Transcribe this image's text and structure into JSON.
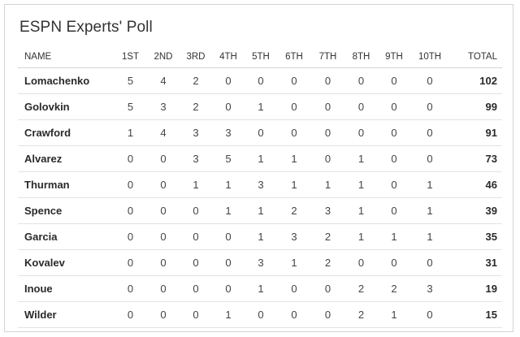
{
  "title": "ESPN Experts' Poll",
  "columns": [
    "NAME",
    "1ST",
    "2ND",
    "3RD",
    "4TH",
    "5TH",
    "6TH",
    "7TH",
    "8TH",
    "9TH",
    "10TH",
    "TOTAL"
  ],
  "rows": [
    {
      "name": "Lomachenko",
      "ranks": [
        "5",
        "4",
        "2",
        "0",
        "0",
        "0",
        "0",
        "0",
        "0",
        "0"
      ],
      "total": "102"
    },
    {
      "name": "Golovkin",
      "ranks": [
        "5",
        "3",
        "2",
        "0",
        "1",
        "0",
        "0",
        "0",
        "0",
        "0"
      ],
      "total": "99"
    },
    {
      "name": "Crawford",
      "ranks": [
        "1",
        "4",
        "3",
        "3",
        "0",
        "0",
        "0",
        "0",
        "0",
        "0"
      ],
      "total": "91"
    },
    {
      "name": "Alvarez",
      "ranks": [
        "0",
        "0",
        "3",
        "5",
        "1",
        "1",
        "0",
        "1",
        "0",
        "0"
      ],
      "total": "73"
    },
    {
      "name": "Thurman",
      "ranks": [
        "0",
        "0",
        "1",
        "1",
        "3",
        "1",
        "1",
        "1",
        "0",
        "1"
      ],
      "total": "46"
    },
    {
      "name": "Spence",
      "ranks": [
        "0",
        "0",
        "0",
        "1",
        "1",
        "2",
        "3",
        "1",
        "0",
        "1"
      ],
      "total": "39"
    },
    {
      "name": "Garcia",
      "ranks": [
        "0",
        "0",
        "0",
        "0",
        "1",
        "3",
        "2",
        "1",
        "1",
        "1"
      ],
      "total": "35"
    },
    {
      "name": "Kovalev",
      "ranks": [
        "0",
        "0",
        "0",
        "0",
        "3",
        "1",
        "2",
        "0",
        "0",
        "0"
      ],
      "total": "31"
    },
    {
      "name": "Inoue",
      "ranks": [
        "0",
        "0",
        "0",
        "0",
        "1",
        "0",
        "0",
        "2",
        "2",
        "3"
      ],
      "total": "19"
    },
    {
      "name": "Wilder",
      "ranks": [
        "0",
        "0",
        "0",
        "1",
        "0",
        "0",
        "0",
        "2",
        "1",
        "0"
      ],
      "total": "15"
    }
  ]
}
